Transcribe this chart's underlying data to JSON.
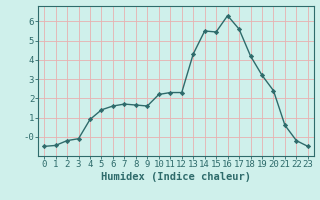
{
  "x": [
    0,
    1,
    2,
    3,
    4,
    5,
    6,
    7,
    8,
    9,
    10,
    11,
    12,
    13,
    14,
    15,
    16,
    17,
    18,
    19,
    20,
    21,
    22,
    23
  ],
  "y": [
    -0.5,
    -0.45,
    -0.2,
    -0.1,
    0.9,
    1.4,
    1.6,
    1.7,
    1.65,
    1.6,
    2.2,
    2.3,
    2.3,
    4.3,
    5.5,
    5.45,
    6.3,
    5.6,
    4.2,
    3.2,
    2.4,
    0.6,
    -0.2,
    -0.5
  ],
  "line_color": "#2e6b6b",
  "marker": "D",
  "marker_size": 2.2,
  "bg_color": "#cff0eb",
  "grid_color": "#e8b0b0",
  "axis_color": "#2e6b6b",
  "xlabel": "Humidex (Indice chaleur)",
  "ylim": [
    -1.0,
    6.8
  ],
  "xlim": [
    -0.5,
    23.5
  ],
  "yticks": [
    0,
    1,
    2,
    3,
    4,
    5,
    6
  ],
  "xticks": [
    0,
    1,
    2,
    3,
    4,
    5,
    6,
    7,
    8,
    9,
    10,
    11,
    12,
    13,
    14,
    15,
    16,
    17,
    18,
    19,
    20,
    21,
    22,
    23
  ],
  "xlabel_fontsize": 7.5,
  "tick_fontsize": 6.5
}
